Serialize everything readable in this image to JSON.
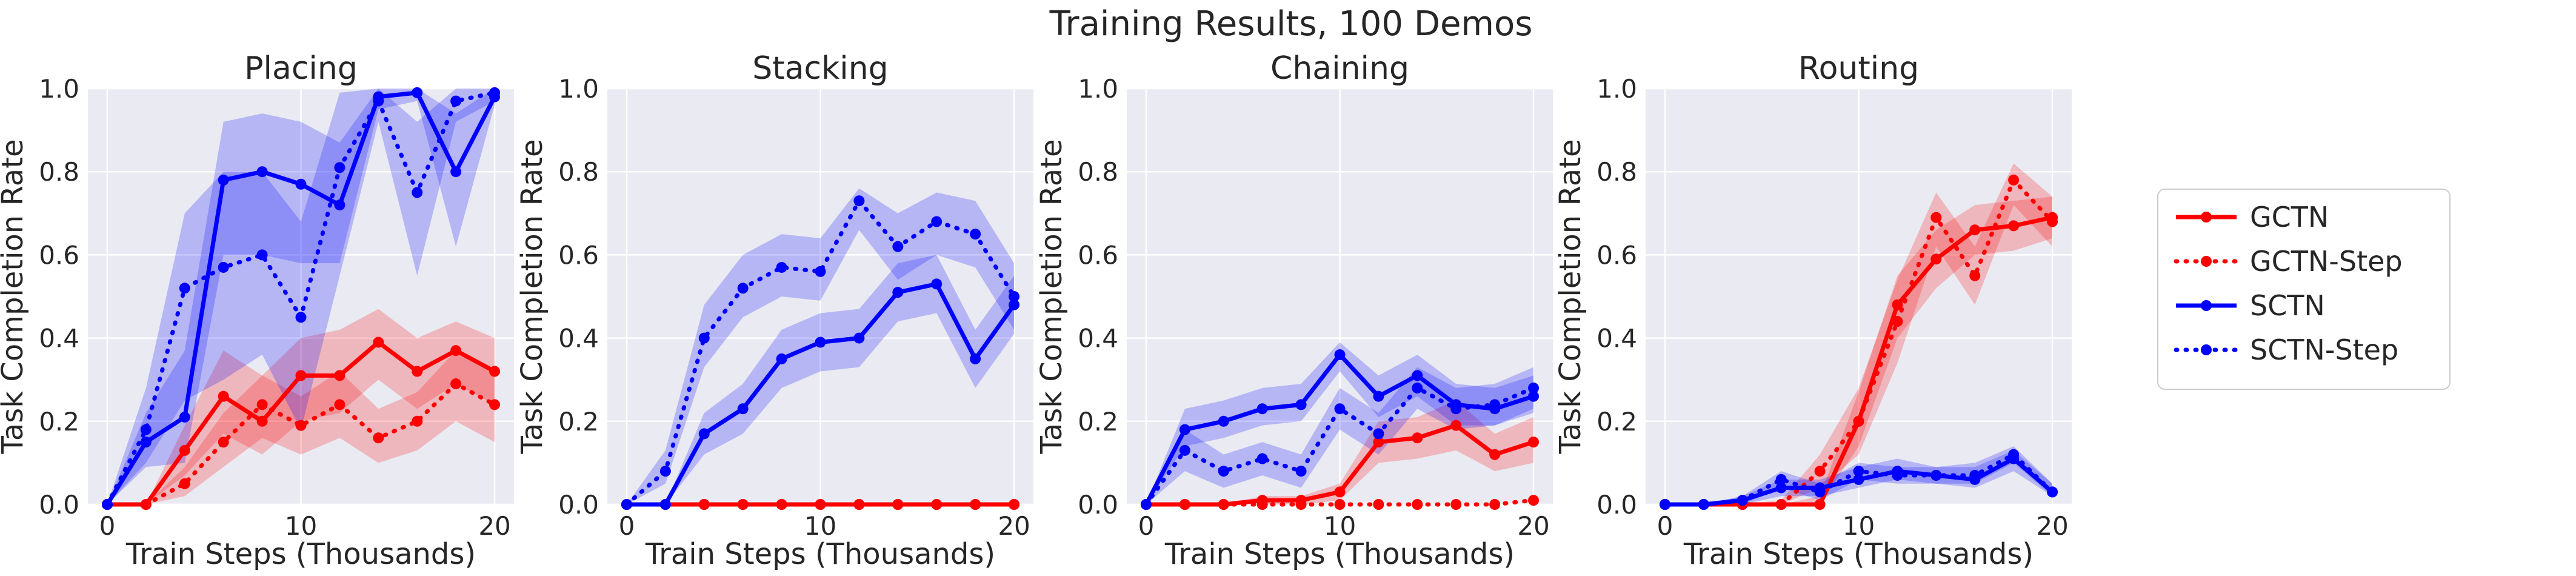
{
  "suptitle": "Training Results, 100 Demos",
  "colors": {
    "GCTN": "#ff0000",
    "SCTN": "#0000ff",
    "panel_bg": "#eaeaf2",
    "grid": "#ffffff"
  },
  "legend": {
    "placement": "right",
    "entries": [
      {
        "name": "GCTN",
        "style": "solid",
        "color": "#ff0000"
      },
      {
        "name": "GCTN-Step",
        "style": "dotted",
        "color": "#ff0000"
      },
      {
        "name": "SCTN",
        "style": "solid",
        "color": "#0000ff"
      },
      {
        "name": "SCTN-Step",
        "style": "dotted",
        "color": "#0000ff"
      }
    ]
  },
  "chart_data": [
    {
      "type": "line",
      "title": "Placing",
      "xlabel": "Train Steps (Thousands)",
      "ylabel": "Task Completion Rate",
      "xlim": [
        -1,
        21
      ],
      "ylim": [
        0,
        1
      ],
      "xticks": [
        0,
        10,
        20
      ],
      "yticks": [
        0.0,
        0.2,
        0.4,
        0.6,
        0.8,
        1.0
      ],
      "grid": true,
      "x": [
        0,
        2,
        4,
        6,
        8,
        10,
        12,
        14,
        16,
        18,
        20
      ],
      "series": [
        {
          "name": "GCTN",
          "style": "solid",
          "color": "#ff0000",
          "values": [
            0,
            0,
            0.13,
            0.26,
            0.2,
            0.31,
            0.31,
            0.39,
            0.32,
            0.37,
            0.32
          ],
          "band": [
            [
              0,
              0
            ],
            [
              0,
              0
            ],
            [
              0.07,
              0.19
            ],
            [
              0.17,
              0.37
            ],
            [
              0.12,
              0.31
            ],
            [
              0.2,
              0.4
            ],
            [
              0.22,
              0.42
            ],
            [
              0.3,
              0.47
            ],
            [
              0.23,
              0.4
            ],
            [
              0.29,
              0.44
            ],
            [
              0.24,
              0.4
            ]
          ]
        },
        {
          "name": "GCTN-Step",
          "style": "dotted",
          "color": "#ff0000",
          "values": [
            0,
            0,
            0.05,
            0.15,
            0.24,
            0.19,
            0.24,
            0.16,
            0.2,
            0.29,
            0.24
          ],
          "band": [
            [
              0,
              0
            ],
            [
              0,
              0
            ],
            [
              0.02,
              0.09
            ],
            [
              0.09,
              0.22
            ],
            [
              0.16,
              0.31
            ],
            [
              0.12,
              0.26
            ],
            [
              0.16,
              0.32
            ],
            [
              0.1,
              0.23
            ],
            [
              0.13,
              0.27
            ],
            [
              0.2,
              0.37
            ],
            [
              0.15,
              0.32
            ]
          ]
        },
        {
          "name": "SCTN",
          "style": "solid",
          "color": "#0000ff",
          "values": [
            0,
            0.15,
            0.21,
            0.78,
            0.8,
            0.77,
            0.72,
            0.98,
            0.99,
            0.8,
            0.98
          ],
          "band": [
            [
              0,
              0
            ],
            [
              0.09,
              0.22
            ],
            [
              0.1,
              0.37
            ],
            [
              0.6,
              0.92
            ],
            [
              0.6,
              0.94
            ],
            [
              0.58,
              0.92
            ],
            [
              0.58,
              0.87
            ],
            [
              0.95,
              1.0
            ],
            [
              0.97,
              1.0
            ],
            [
              0.62,
              0.94
            ],
            [
              0.96,
              1.0
            ]
          ]
        },
        {
          "name": "SCTN-Step",
          "style": "dotted",
          "color": "#0000ff",
          "values": [
            0,
            0.18,
            0.52,
            0.57,
            0.6,
            0.45,
            0.81,
            0.97,
            0.75,
            0.97,
            0.99
          ],
          "band": [
            [
              0,
              0
            ],
            [
              0.1,
              0.28
            ],
            [
              0.25,
              0.7
            ],
            [
              0.3,
              0.8
            ],
            [
              0.36,
              0.8
            ],
            [
              0.18,
              0.68
            ],
            [
              0.55,
              0.99
            ],
            [
              0.92,
              1.0
            ],
            [
              0.55,
              0.92
            ],
            [
              0.92,
              1.0
            ],
            [
              0.97,
              1.0
            ]
          ]
        }
      ]
    },
    {
      "type": "line",
      "title": "Stacking",
      "xlabel": "Train Steps (Thousands)",
      "ylabel": "Task Completion Rate",
      "xlim": [
        -1,
        21
      ],
      "ylim": [
        0,
        1
      ],
      "xticks": [
        0,
        10,
        20
      ],
      "yticks": [
        0.0,
        0.2,
        0.4,
        0.6,
        0.8,
        1.0
      ],
      "grid": true,
      "x": [
        0,
        2,
        4,
        6,
        8,
        10,
        12,
        14,
        16,
        18,
        20
      ],
      "series": [
        {
          "name": "GCTN",
          "style": "solid",
          "color": "#ff0000",
          "values": [
            0,
            0,
            0,
            0,
            0,
            0,
            0,
            0,
            0,
            0,
            0
          ],
          "band": null
        },
        {
          "name": "GCTN-Step",
          "style": "dotted",
          "color": "#ff0000",
          "values": [
            0,
            0,
            0,
            0,
            0,
            0,
            0,
            0,
            0,
            0,
            0
          ],
          "band": null
        },
        {
          "name": "SCTN",
          "style": "solid",
          "color": "#0000ff",
          "values": [
            0,
            0,
            0.17,
            0.23,
            0.35,
            0.39,
            0.4,
            0.51,
            0.53,
            0.35,
            0.48
          ],
          "band": [
            [
              0,
              0
            ],
            [
              0,
              0
            ],
            [
              0.12,
              0.22
            ],
            [
              0.17,
              0.29
            ],
            [
              0.28,
              0.42
            ],
            [
              0.32,
              0.46
            ],
            [
              0.33,
              0.47
            ],
            [
              0.44,
              0.58
            ],
            [
              0.46,
              0.6
            ],
            [
              0.28,
              0.42
            ],
            [
              0.41,
              0.55
            ]
          ]
        },
        {
          "name": "SCTN-Step",
          "style": "dotted",
          "color": "#0000ff",
          "values": [
            0,
            0.08,
            0.4,
            0.52,
            0.57,
            0.56,
            0.73,
            0.62,
            0.68,
            0.65,
            0.5
          ],
          "band": [
            [
              0,
              0
            ],
            [
              0.05,
              0.13
            ],
            [
              0.33,
              0.48
            ],
            [
              0.45,
              0.6
            ],
            [
              0.5,
              0.65
            ],
            [
              0.49,
              0.64
            ],
            [
              0.66,
              0.76
            ],
            [
              0.54,
              0.7
            ],
            [
              0.6,
              0.75
            ],
            [
              0.57,
              0.73
            ],
            [
              0.42,
              0.58
            ]
          ]
        }
      ]
    },
    {
      "type": "line",
      "title": "Chaining",
      "xlabel": "Train Steps (Thousands)",
      "ylabel": "Task Completion Rate",
      "xlim": [
        -1,
        21
      ],
      "ylim": [
        0,
        1
      ],
      "xticks": [
        0,
        10,
        20
      ],
      "yticks": [
        0.0,
        0.2,
        0.4,
        0.6,
        0.8,
        1.0
      ],
      "grid": true,
      "x": [
        0,
        2,
        4,
        6,
        8,
        10,
        12,
        14,
        16,
        18,
        20
      ],
      "series": [
        {
          "name": "GCTN",
          "style": "solid",
          "color": "#ff0000",
          "values": [
            0,
            0,
            0,
            0.01,
            0.01,
            0.03,
            0.15,
            0.16,
            0.19,
            0.12,
            0.15
          ],
          "band": [
            [
              0,
              0
            ],
            [
              0,
              0
            ],
            [
              0,
              0
            ],
            [
              0,
              0.02
            ],
            [
              0,
              0.02
            ],
            [
              0.01,
              0.05
            ],
            [
              0.1,
              0.2
            ],
            [
              0.11,
              0.21
            ],
            [
              0.13,
              0.25
            ],
            [
              0.08,
              0.17
            ],
            [
              0.1,
              0.21
            ]
          ]
        },
        {
          "name": "GCTN-Step",
          "style": "dotted",
          "color": "#ff0000",
          "values": [
            0,
            0,
            0,
            0,
            0,
            0,
            0,
            0,
            0,
            0,
            0.01
          ],
          "band": null
        },
        {
          "name": "SCTN",
          "style": "solid",
          "color": "#0000ff",
          "values": [
            0,
            0.18,
            0.2,
            0.23,
            0.24,
            0.36,
            0.26,
            0.31,
            0.24,
            0.23,
            0.26
          ],
          "band": [
            [
              0,
              0
            ],
            [
              0.14,
              0.23
            ],
            [
              0.16,
              0.25
            ],
            [
              0.19,
              0.28
            ],
            [
              0.2,
              0.29
            ],
            [
              0.32,
              0.39
            ],
            [
              0.21,
              0.31
            ],
            [
              0.26,
              0.36
            ],
            [
              0.19,
              0.29
            ],
            [
              0.19,
              0.28
            ],
            [
              0.22,
              0.31
            ]
          ]
        },
        {
          "name": "SCTN-Step",
          "style": "dotted",
          "color": "#0000ff",
          "values": [
            0,
            0.13,
            0.08,
            0.11,
            0.08,
            0.23,
            0.17,
            0.28,
            0.23,
            0.24,
            0.28
          ],
          "band": [
            [
              0,
              0
            ],
            [
              0.08,
              0.18
            ],
            [
              0.04,
              0.12
            ],
            [
              0.07,
              0.15
            ],
            [
              0.04,
              0.12
            ],
            [
              0.18,
              0.28
            ],
            [
              0.12,
              0.22
            ],
            [
              0.23,
              0.33
            ],
            [
              0.18,
              0.28
            ],
            [
              0.19,
              0.29
            ],
            [
              0.23,
              0.33
            ]
          ]
        }
      ]
    },
    {
      "type": "line",
      "title": "Routing",
      "xlabel": "Train Steps (Thousands)",
      "ylabel": "Task Completion Rate",
      "xlim": [
        -1,
        21
      ],
      "ylim": [
        0,
        1
      ],
      "xticks": [
        0,
        10,
        20
      ],
      "yticks": [
        0.0,
        0.2,
        0.4,
        0.6,
        0.8,
        1.0
      ],
      "grid": true,
      "x": [
        0,
        2,
        4,
        6,
        8,
        10,
        12,
        14,
        16,
        18,
        20
      ],
      "series": [
        {
          "name": "GCTN",
          "style": "solid",
          "color": "#ff0000",
          "values": [
            0,
            0,
            0,
            0,
            0,
            0.2,
            0.48,
            0.59,
            0.66,
            0.67,
            0.69
          ],
          "band": [
            [
              0,
              0
            ],
            [
              0,
              0
            ],
            [
              0,
              0
            ],
            [
              0,
              0
            ],
            [
              0,
              0.02
            ],
            [
              0.14,
              0.27
            ],
            [
              0.4,
              0.55
            ],
            [
              0.52,
              0.66
            ],
            [
              0.6,
              0.72
            ],
            [
              0.61,
              0.73
            ],
            [
              0.64,
              0.74
            ]
          ]
        },
        {
          "name": "GCTN-Step",
          "style": "dotted",
          "color": "#ff0000",
          "values": [
            0,
            0,
            0,
            0,
            0.08,
            0.2,
            0.44,
            0.69,
            0.55,
            0.78,
            0.68
          ],
          "band": [
            [
              0,
              0
            ],
            [
              0,
              0
            ],
            [
              0,
              0
            ],
            [
              0,
              0.01
            ],
            [
              0.04,
              0.12
            ],
            [
              0.12,
              0.28
            ],
            [
              0.34,
              0.54
            ],
            [
              0.62,
              0.75
            ],
            [
              0.48,
              0.62
            ],
            [
              0.72,
              0.82
            ],
            [
              0.62,
              0.74
            ]
          ]
        },
        {
          "name": "SCTN",
          "style": "solid",
          "color": "#0000ff",
          "values": [
            0,
            0,
            0.01,
            0.04,
            0.04,
            0.06,
            0.08,
            0.07,
            0.06,
            0.11,
            0.03
          ],
          "band": [
            [
              0,
              0
            ],
            [
              0,
              0
            ],
            [
              0,
              0.02
            ],
            [
              0.02,
              0.06
            ],
            [
              0.02,
              0.06
            ],
            [
              0.04,
              0.09
            ],
            [
              0.06,
              0.11
            ],
            [
              0.05,
              0.09
            ],
            [
              0.04,
              0.09
            ],
            [
              0.08,
              0.13
            ],
            [
              0.02,
              0.05
            ]
          ]
        },
        {
          "name": "SCTN-Step",
          "style": "dotted",
          "color": "#0000ff",
          "values": [
            0,
            0,
            0.01,
            0.06,
            0.03,
            0.08,
            0.07,
            0.07,
            0.07,
            0.12,
            0.03
          ],
          "band": [
            [
              0,
              0
            ],
            [
              0,
              0
            ],
            [
              0,
              0.02
            ],
            [
              0.04,
              0.08
            ],
            [
              0.01,
              0.05
            ],
            [
              0.06,
              0.1
            ],
            [
              0.05,
              0.09
            ],
            [
              0.05,
              0.09
            ],
            [
              0.05,
              0.1
            ],
            [
              0.1,
              0.14
            ],
            [
              0.02,
              0.05
            ]
          ]
        }
      ]
    }
  ]
}
